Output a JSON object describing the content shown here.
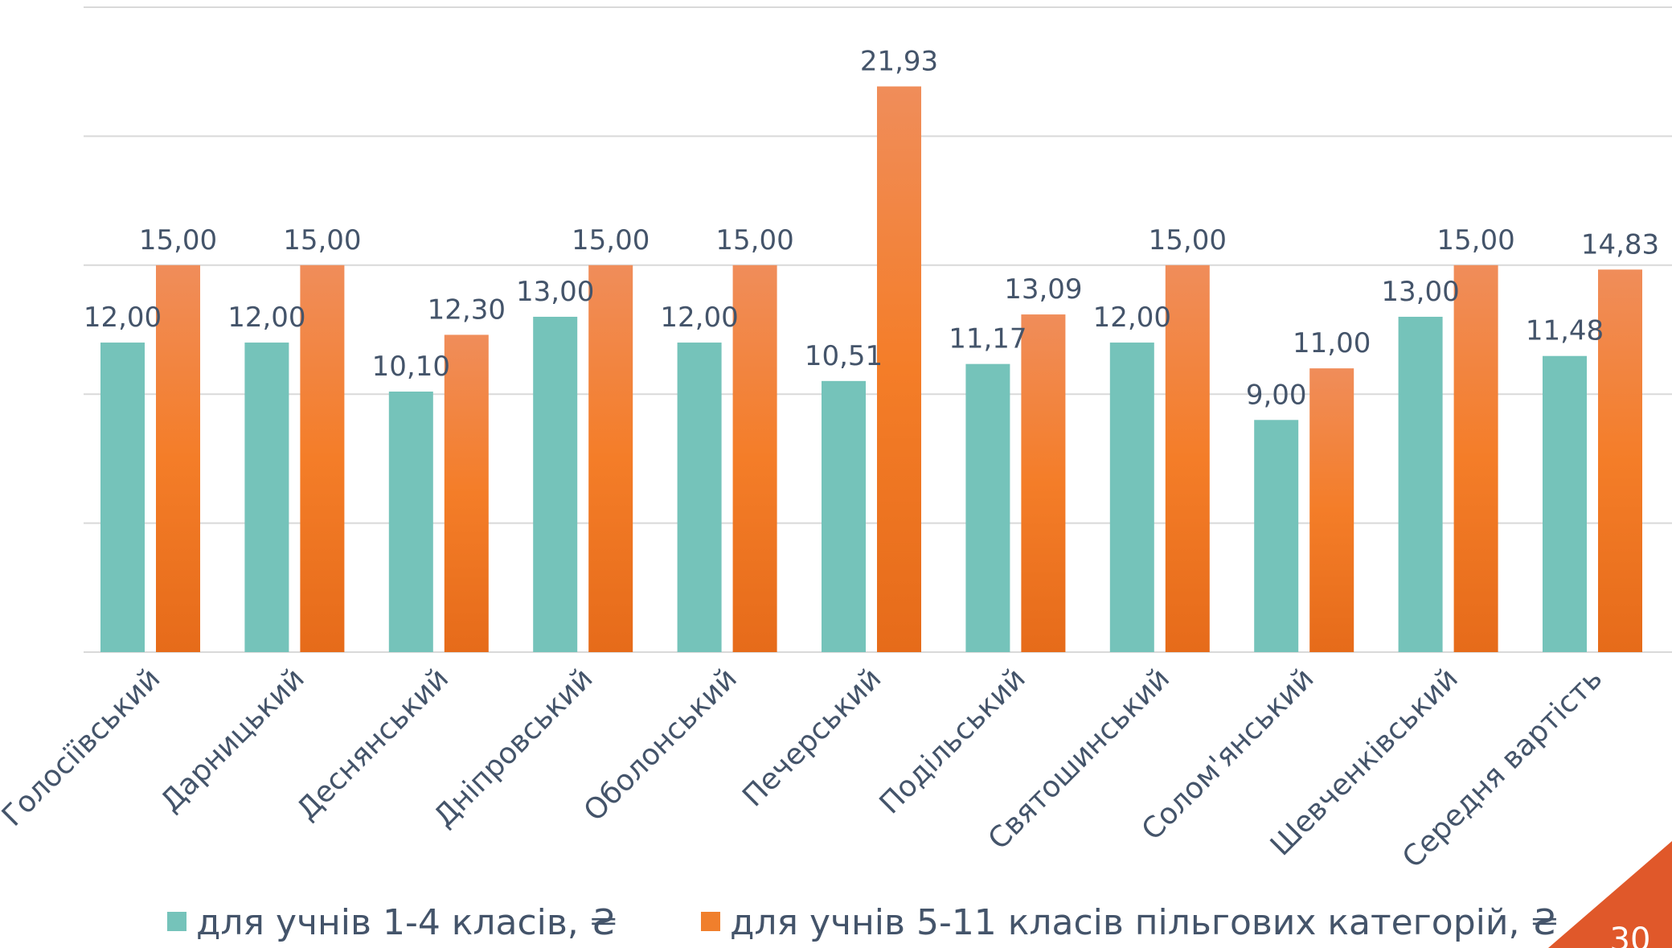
{
  "slide": {
    "number": "30",
    "accent_color": "#e0582a"
  },
  "chart_data": {
    "type": "bar",
    "title": "",
    "xlabel": "",
    "ylabel": "",
    "ylim": [
      0,
      25
    ],
    "y_grid_step": 5,
    "grid": true,
    "y_axis_labels_shown": false,
    "legend_position": "bottom",
    "categories": [
      "Голосіївський",
      "Дарницький",
      "Деснянський",
      "Дніпровський",
      "Оболонський",
      "Печерський",
      "Подільський",
      "Святошинський",
      "Солом'янський",
      "Шевченківський",
      "Середня вартість"
    ],
    "series": [
      {
        "name": "для учнів  1-4 класів, ₴",
        "color": "#75c3ba",
        "values": [
          12.0,
          12.0,
          10.1,
          13.0,
          12.0,
          10.51,
          11.17,
          12.0,
          9.0,
          13.0,
          11.48
        ],
        "labels": [
          "12,00",
          "12,00",
          "10,10",
          "13,00",
          "12,00",
          "10,51",
          "11,17",
          "12,00",
          "9,00",
          "13,00",
          "11,48"
        ]
      },
      {
        "name": "для учнів  5-11 класів пільгових категорій, ₴",
        "color": "#f07f2c",
        "values": [
          15.0,
          15.0,
          12.3,
          15.0,
          15.0,
          21.93,
          13.09,
          15.0,
          11.0,
          15.0,
          14.83
        ],
        "labels": [
          "15,00",
          "15,00",
          "12,30",
          "15,00",
          "15,00",
          "21,93",
          "13,09",
          "15,00",
          "11,00",
          "15,00",
          "14,83"
        ]
      }
    ]
  }
}
